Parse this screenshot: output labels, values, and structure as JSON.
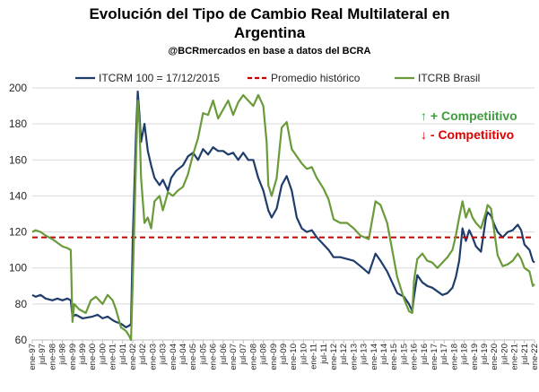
{
  "chart_data": {
    "type": "line",
    "title_line1": "Evolución del Tipo de Cambio Real Multilateral en",
    "title_line2": "Argentina",
    "subtitle": "@BCRmercados en base a datos del BCRA",
    "ylim": [
      60,
      200
    ],
    "yticks": [
      60,
      80,
      100,
      120,
      140,
      160,
      180,
      200
    ],
    "x_start": "ene-97",
    "x_end": "ene-22",
    "x_tick_labels": [
      "ene-97",
      "jul-97",
      "ene-98",
      "jul-98",
      "ene-99",
      "jul-99",
      "ene-00",
      "jul-00",
      "ene-01",
      "jul-01",
      "ene-02",
      "jul-02",
      "ene-03",
      "jul-03",
      "ene-04",
      "jul-04",
      "ene-05",
      "jul-05",
      "ene-06",
      "jul-06",
      "ene-07",
      "jul-07",
      "ene-08",
      "jul-08",
      "ene-09",
      "jul-09",
      "ene-10",
      "jul-10",
      "ene-11",
      "jul-11",
      "ene-12",
      "jul-12",
      "ene-13",
      "jul-13",
      "ene-14",
      "jul-14",
      "ene-15",
      "jul-15",
      "ene-16",
      "jul-16",
      "ene-17",
      "jul-17",
      "ene-18",
      "jul-18",
      "ene-19",
      "jul-19",
      "ene-20",
      "jul-20",
      "ene-21",
      "jul-21",
      "ene-22"
    ],
    "legend_position": "top",
    "grid": true,
    "series": [
      {
        "name": "ITCRM 100 = 17/12/2015",
        "color": "#1F3D6B",
        "style": "solid",
        "points": [
          [
            "ene-97",
            85
          ],
          [
            "mar-97",
            84
          ],
          [
            "jun-97",
            85
          ],
          [
            "sep-97",
            83
          ],
          [
            "ene-98",
            82
          ],
          [
            "abr-98",
            83
          ],
          [
            "jul-98",
            82
          ],
          [
            "oct-98",
            83
          ],
          [
            "dic-98",
            82
          ],
          [
            "ene-99",
            73
          ],
          [
            "mar-99",
            74
          ],
          [
            "jul-99",
            72
          ],
          [
            "ene-00",
            73
          ],
          [
            "abr-00",
            74
          ],
          [
            "jul-00",
            72
          ],
          [
            "oct-00",
            73
          ],
          [
            "ene-01",
            71
          ],
          [
            "mar-01",
            70
          ],
          [
            "jun-01",
            69
          ],
          [
            "sep-01",
            67
          ],
          [
            "nov-01",
            68
          ],
          [
            "dic-01",
            69
          ],
          [
            "ene-02",
            115
          ],
          [
            "mar-02",
            175
          ],
          [
            "abr-02",
            198
          ],
          [
            "may-02",
            185
          ],
          [
            "jun-02",
            170
          ],
          [
            "ago-02",
            180
          ],
          [
            "oct-02",
            165
          ],
          [
            "dic-02",
            157
          ],
          [
            "feb-03",
            150
          ],
          [
            "may-03",
            146
          ],
          [
            "jul-03",
            149
          ],
          [
            "oct-03",
            143
          ],
          [
            "dic-03",
            150
          ],
          [
            "mar-04",
            154
          ],
          [
            "jul-04",
            157
          ],
          [
            "oct-04",
            162
          ],
          [
            "ene-05",
            164
          ],
          [
            "abr-05",
            160
          ],
          [
            "jul-05",
            166
          ],
          [
            "oct-05",
            163
          ],
          [
            "ene-06",
            167
          ],
          [
            "abr-06",
            165
          ],
          [
            "jul-06",
            165
          ],
          [
            "oct-06",
            163
          ],
          [
            "ene-07",
            164
          ],
          [
            "abr-07",
            160
          ],
          [
            "jul-07",
            164
          ],
          [
            "oct-07",
            160
          ],
          [
            "ene-08",
            160
          ],
          [
            "abr-08",
            150
          ],
          [
            "jul-08",
            143
          ],
          [
            "oct-08",
            132
          ],
          [
            "dic-08",
            128
          ],
          [
            "mar-09",
            133
          ],
          [
            "jun-09",
            146
          ],
          [
            "sep-09",
            151
          ],
          [
            "dic-09",
            143
          ],
          [
            "mar-10",
            128
          ],
          [
            "jun-10",
            122
          ],
          [
            "sep-10",
            120
          ],
          [
            "dic-10",
            121
          ],
          [
            "mar-11",
            117
          ],
          [
            "jul-11",
            113
          ],
          [
            "oct-11",
            110
          ],
          [
            "ene-12",
            106
          ],
          [
            "may-12",
            106
          ],
          [
            "sep-12",
            105
          ],
          [
            "ene-13",
            104
          ],
          [
            "may-13",
            101
          ],
          [
            "oct-13",
            97
          ],
          [
            "feb-14",
            108
          ],
          [
            "may-14",
            104
          ],
          [
            "sep-14",
            98
          ],
          [
            "dic-14",
            92
          ],
          [
            "mar-15",
            86
          ],
          [
            "jul-15",
            84
          ],
          [
            "oct-15",
            80
          ],
          [
            "dic-15",
            76
          ],
          [
            "ene-16",
            84
          ],
          [
            "mar-16",
            96
          ],
          [
            "jun-16",
            92
          ],
          [
            "sep-16",
            90
          ],
          [
            "dic-16",
            89
          ],
          [
            "mar-17",
            87
          ],
          [
            "jun-17",
            85
          ],
          [
            "sep-17",
            86
          ],
          [
            "dic-17",
            89
          ],
          [
            "feb-18",
            95
          ],
          [
            "abr-18",
            104
          ],
          [
            "jun-18",
            122
          ],
          [
            "ago-18",
            115
          ],
          [
            "oct-18",
            121
          ],
          [
            "dic-18",
            117
          ],
          [
            "feb-19",
            112
          ],
          [
            "may-19",
            109
          ],
          [
            "ago-19",
            128
          ],
          [
            "sep-19",
            131
          ],
          [
            "nov-19",
            129
          ],
          [
            "ene-20",
            124
          ],
          [
            "mar-20",
            120
          ],
          [
            "jun-20",
            117
          ],
          [
            "sep-20",
            120
          ],
          [
            "dic-20",
            121
          ],
          [
            "mar-21",
            124
          ],
          [
            "may-21",
            121
          ],
          [
            "jul-21",
            113
          ],
          [
            "oct-21",
            110
          ],
          [
            "dic-21",
            104
          ],
          [
            "ene-22",
            103
          ]
        ]
      },
      {
        "name": "Promedio histórico",
        "color": "#C00000",
        "style": "dashed",
        "value": 117
      },
      {
        "name": "ITCRB Brasil",
        "color": "#6A9A3A",
        "style": "solid",
        "points": [
          [
            "ene-97",
            120
          ],
          [
            "mar-97",
            121
          ],
          [
            "jun-97",
            120
          ],
          [
            "sep-97",
            118
          ],
          [
            "ene-98",
            116
          ],
          [
            "abr-98",
            114
          ],
          [
            "jul-98",
            112
          ],
          [
            "oct-98",
            111
          ],
          [
            "dic-98",
            110
          ],
          [
            "ene-99",
            70
          ],
          [
            "feb-99",
            80
          ],
          [
            "may-99",
            77
          ],
          [
            "sep-99",
            75
          ],
          [
            "dic-99",
            82
          ],
          [
            "mar-00",
            84
          ],
          [
            "jul-00",
            80
          ],
          [
            "oct-00",
            85
          ],
          [
            "ene-01",
            82
          ],
          [
            "mar-01",
            77
          ],
          [
            "jun-01",
            67
          ],
          [
            "sep-01",
            65
          ],
          [
            "nov-01",
            62
          ],
          [
            "dic-01",
            60
          ],
          [
            "ene-02",
            92
          ],
          [
            "mar-02",
            160
          ],
          [
            "abr-02",
            193
          ],
          [
            "may-02",
            180
          ],
          [
            "jun-02",
            150
          ],
          [
            "ago-02",
            125
          ],
          [
            "oct-02",
            128
          ],
          [
            "dic-02",
            122
          ],
          [
            "feb-03",
            137
          ],
          [
            "may-03",
            140
          ],
          [
            "jul-03",
            132
          ],
          [
            "oct-03",
            142
          ],
          [
            "ene-04",
            140
          ],
          [
            "abr-04",
            143
          ],
          [
            "jul-04",
            145
          ],
          [
            "oct-04",
            152
          ],
          [
            "ene-05",
            163
          ],
          [
            "abr-05",
            172
          ],
          [
            "jul-05",
            186
          ],
          [
            "oct-05",
            185
          ],
          [
            "ene-06",
            193
          ],
          [
            "abr-06",
            183
          ],
          [
            "jul-06",
            188
          ],
          [
            "oct-06",
            193
          ],
          [
            "ene-07",
            185
          ],
          [
            "abr-07",
            192
          ],
          [
            "jul-07",
            196
          ],
          [
            "oct-07",
            193
          ],
          [
            "ene-08",
            190
          ],
          [
            "abr-08",
            196
          ],
          [
            "jul-08",
            190
          ],
          [
            "sep-08",
            170
          ],
          [
            "oct-08",
            146
          ],
          [
            "dic-08",
            140
          ],
          [
            "mar-09",
            150
          ],
          [
            "jun-09",
            178
          ],
          [
            "sep-09",
            181
          ],
          [
            "dic-09",
            166
          ],
          [
            "mar-10",
            162
          ],
          [
            "jun-10",
            158
          ],
          [
            "sep-10",
            155
          ],
          [
            "dic-10",
            156
          ],
          [
            "mar-11",
            150
          ],
          [
            "jul-11",
            144
          ],
          [
            "oct-11",
            138
          ],
          [
            "ene-12",
            127
          ],
          [
            "may-12",
            125
          ],
          [
            "sep-12",
            125
          ],
          [
            "ene-13",
            122
          ],
          [
            "may-13",
            118
          ],
          [
            "oct-13",
            116
          ],
          [
            "feb-14",
            137
          ],
          [
            "may-14",
            135
          ],
          [
            "sep-14",
            125
          ],
          [
            "dic-14",
            110
          ],
          [
            "mar-15",
            95
          ],
          [
            "jul-15",
            83
          ],
          [
            "oct-15",
            76
          ],
          [
            "dic-15",
            75
          ],
          [
            "ene-16",
            93
          ],
          [
            "mar-16",
            105
          ],
          [
            "jun-16",
            108
          ],
          [
            "sep-16",
            104
          ],
          [
            "dic-16",
            103
          ],
          [
            "mar-17",
            100
          ],
          [
            "jun-17",
            103
          ],
          [
            "sep-17",
            106
          ],
          [
            "dic-17",
            110
          ],
          [
            "feb-18",
            118
          ],
          [
            "abr-18",
            128
          ],
          [
            "jun-18",
            137
          ],
          [
            "ago-18",
            128
          ],
          [
            "oct-18",
            133
          ],
          [
            "dic-18",
            128
          ],
          [
            "feb-19",
            125
          ],
          [
            "may-19",
            122
          ],
          [
            "ago-19",
            131
          ],
          [
            "sep-19",
            135
          ],
          [
            "nov-19",
            133
          ],
          [
            "ene-20",
            120
          ],
          [
            "mar-20",
            107
          ],
          [
            "jun-20",
            101
          ],
          [
            "sep-20",
            102
          ],
          [
            "dic-20",
            104
          ],
          [
            "mar-21",
            108
          ],
          [
            "may-21",
            105
          ],
          [
            "jul-21",
            100
          ],
          [
            "oct-21",
            98
          ],
          [
            "dic-21",
            90
          ],
          [
            "ene-22",
            91
          ]
        ]
      }
    ],
    "annotations": [
      {
        "arrow": "↑",
        "text": "+ Competiitivo",
        "color": "#3E9C3E"
      },
      {
        "arrow": "↓",
        "text": "-  Competiitivo",
        "color": "#E00000"
      }
    ]
  }
}
